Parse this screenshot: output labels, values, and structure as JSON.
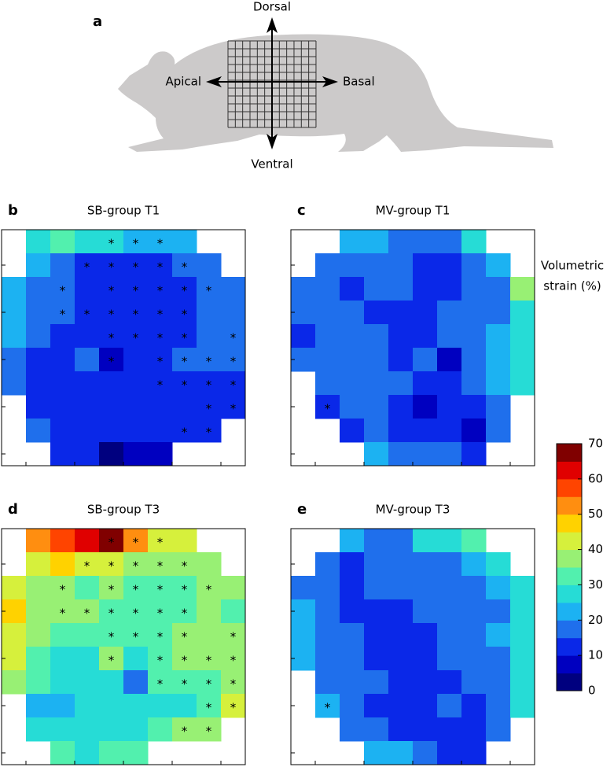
{
  "panel_a": {
    "label": "a",
    "dorsal": "Dorsal",
    "ventral": "Ventral",
    "apical": "Apical",
    "basal": "Basal"
  },
  "colorbar": {
    "label": [
      "Volumetric",
      "strain (%)"
    ],
    "clim": [
      0,
      70
    ],
    "ticks": [
      0,
      10,
      20,
      30,
      40,
      50,
      60,
      70
    ],
    "colors": [
      "#00007f",
      "#0000c0",
      "#0a28e8",
      "#1f6fec",
      "#1cb2f2",
      "#26dcd6",
      "#52f0ae",
      "#98f074",
      "#d6f03c",
      "#ffd200",
      "#ff8e10",
      "#ff4400",
      "#e00000",
      "#800000"
    ]
  },
  "chart_data": [
    {
      "type": "heatmap",
      "panel": "b",
      "title": "SB-group T1",
      "marker": "*",
      "values": [
        [
          null,
          27,
          32,
          27,
          27,
          22,
          22,
          22,
          null,
          null
        ],
        [
          null,
          22,
          17,
          12,
          12,
          12,
          12,
          17,
          17,
          null
        ],
        [
          22,
          17,
          17,
          12,
          12,
          12,
          12,
          12,
          17,
          17
        ],
        [
          22,
          17,
          17,
          12,
          12,
          12,
          12,
          12,
          17,
          17
        ],
        [
          22,
          17,
          12,
          12,
          12,
          12,
          12,
          12,
          17,
          17
        ],
        [
          17,
          12,
          12,
          17,
          7,
          12,
          12,
          17,
          17,
          17
        ],
        [
          17,
          12,
          12,
          12,
          12,
          12,
          12,
          12,
          12,
          12
        ],
        [
          null,
          12,
          12,
          12,
          12,
          12,
          12,
          12,
          12,
          12
        ],
        [
          null,
          17,
          12,
          12,
          12,
          12,
          12,
          12,
          12,
          null
        ],
        [
          null,
          null,
          12,
          12,
          2,
          7,
          7,
          null,
          null,
          null
        ]
      ],
      "marked": [
        [
          0,
          4
        ],
        [
          0,
          5
        ],
        [
          0,
          6
        ],
        [
          1,
          3
        ],
        [
          1,
          4
        ],
        [
          1,
          5
        ],
        [
          1,
          6
        ],
        [
          1,
          7
        ],
        [
          2,
          2
        ],
        [
          2,
          4
        ],
        [
          2,
          5
        ],
        [
          2,
          6
        ],
        [
          2,
          7
        ],
        [
          2,
          8
        ],
        [
          3,
          2
        ],
        [
          3,
          3
        ],
        [
          3,
          4
        ],
        [
          3,
          5
        ],
        [
          3,
          6
        ],
        [
          3,
          7
        ],
        [
          4,
          4
        ],
        [
          4,
          5
        ],
        [
          4,
          6
        ],
        [
          4,
          7
        ],
        [
          4,
          9
        ],
        [
          5,
          4
        ],
        [
          5,
          6
        ],
        [
          5,
          7
        ],
        [
          5,
          8
        ],
        [
          5,
          9
        ],
        [
          6,
          6
        ],
        [
          6,
          7
        ],
        [
          6,
          8
        ],
        [
          6,
          9
        ],
        [
          7,
          8
        ],
        [
          7,
          9
        ],
        [
          8,
          7
        ],
        [
          8,
          8
        ]
      ]
    },
    {
      "type": "heatmap",
      "panel": "c",
      "title": "MV-group T1",
      "marker": "*",
      "values": [
        [
          null,
          null,
          22,
          22,
          17,
          17,
          17,
          27,
          null,
          null
        ],
        [
          null,
          17,
          17,
          17,
          17,
          12,
          12,
          17,
          22,
          null
        ],
        [
          17,
          17,
          12,
          17,
          17,
          12,
          12,
          17,
          17,
          37
        ],
        [
          17,
          17,
          17,
          12,
          12,
          12,
          17,
          17,
          17,
          27
        ],
        [
          12,
          17,
          17,
          17,
          12,
          12,
          17,
          17,
          22,
          27
        ],
        [
          17,
          17,
          17,
          17,
          12,
          17,
          7,
          17,
          22,
          27
        ],
        [
          null,
          17,
          17,
          17,
          17,
          12,
          12,
          17,
          22,
          27
        ],
        [
          null,
          12,
          17,
          17,
          12,
          7,
          12,
          12,
          17,
          null
        ],
        [
          null,
          null,
          12,
          17,
          12,
          12,
          12,
          7,
          17,
          null
        ],
        [
          null,
          null,
          null,
          22,
          17,
          17,
          17,
          12,
          null,
          null
        ]
      ],
      "marked": [
        [
          7,
          1
        ]
      ]
    },
    {
      "type": "heatmap",
      "panel": "d",
      "title": "SB-group T3",
      "marker": "*",
      "values": [
        [
          null,
          52,
          57,
          62,
          67,
          52,
          42,
          42,
          null,
          null
        ],
        [
          null,
          42,
          47,
          42,
          42,
          37,
          37,
          37,
          37,
          null
        ],
        [
          42,
          37,
          37,
          32,
          37,
          32,
          32,
          32,
          37,
          37
        ],
        [
          47,
          37,
          37,
          37,
          32,
          32,
          32,
          32,
          37,
          32
        ],
        [
          42,
          37,
          32,
          32,
          32,
          32,
          32,
          37,
          37,
          37
        ],
        [
          42,
          32,
          27,
          27,
          37,
          27,
          32,
          37,
          37,
          37
        ],
        [
          37,
          32,
          27,
          27,
          27,
          17,
          32,
          32,
          32,
          37
        ],
        [
          null,
          22,
          22,
          27,
          27,
          27,
          27,
          27,
          32,
          42
        ],
        [
          null,
          27,
          27,
          27,
          27,
          27,
          32,
          37,
          37,
          null
        ],
        [
          null,
          null,
          32,
          27,
          32,
          32,
          null,
          null,
          null,
          null
        ]
      ],
      "marked": [
        [
          0,
          4
        ],
        [
          0,
          5
        ],
        [
          0,
          6
        ],
        [
          1,
          3
        ],
        [
          1,
          4
        ],
        [
          1,
          5
        ],
        [
          1,
          6
        ],
        [
          1,
          7
        ],
        [
          2,
          2
        ],
        [
          2,
          4
        ],
        [
          2,
          5
        ],
        [
          2,
          6
        ],
        [
          2,
          7
        ],
        [
          2,
          8
        ],
        [
          3,
          2
        ],
        [
          3,
          3
        ],
        [
          3,
          4
        ],
        [
          3,
          5
        ],
        [
          3,
          6
        ],
        [
          3,
          7
        ],
        [
          4,
          4
        ],
        [
          4,
          5
        ],
        [
          4,
          6
        ],
        [
          4,
          7
        ],
        [
          4,
          9
        ],
        [
          5,
          4
        ],
        [
          5,
          6
        ],
        [
          5,
          7
        ],
        [
          5,
          8
        ],
        [
          5,
          9
        ],
        [
          6,
          6
        ],
        [
          6,
          7
        ],
        [
          6,
          8
        ],
        [
          6,
          9
        ],
        [
          7,
          8
        ],
        [
          7,
          9
        ],
        [
          8,
          7
        ],
        [
          8,
          8
        ]
      ]
    },
    {
      "type": "heatmap",
      "panel": "e",
      "title": "MV-group T3",
      "marker": "*",
      "values": [
        [
          null,
          null,
          22,
          17,
          17,
          27,
          27,
          32,
          null,
          null
        ],
        [
          null,
          17,
          12,
          17,
          17,
          17,
          17,
          22,
          27,
          null
        ],
        [
          17,
          17,
          12,
          17,
          17,
          17,
          17,
          17,
          22,
          27
        ],
        [
          22,
          17,
          12,
          12,
          12,
          17,
          17,
          17,
          17,
          27
        ],
        [
          22,
          17,
          17,
          12,
          12,
          12,
          17,
          17,
          22,
          27
        ],
        [
          22,
          17,
          17,
          12,
          12,
          12,
          17,
          17,
          17,
          27
        ],
        [
          null,
          17,
          17,
          17,
          12,
          12,
          12,
          17,
          17,
          27
        ],
        [
          null,
          22,
          17,
          12,
          12,
          12,
          17,
          12,
          17,
          27
        ],
        [
          null,
          null,
          17,
          17,
          12,
          12,
          12,
          12,
          17,
          null
        ],
        [
          null,
          null,
          null,
          22,
          22,
          17,
          12,
          12,
          null,
          null
        ]
      ],
      "marked": [
        [
          7,
          1
        ]
      ]
    }
  ]
}
